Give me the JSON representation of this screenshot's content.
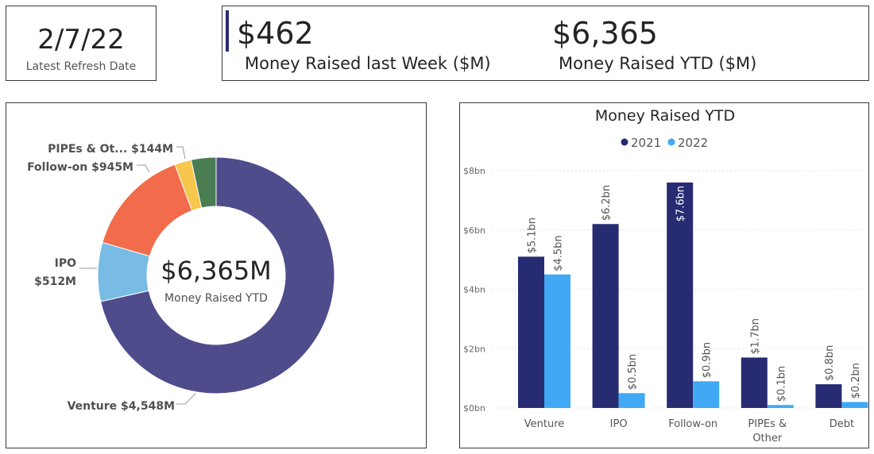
{
  "refresh": {
    "date": "2/7/22",
    "label": "Latest Refresh Date"
  },
  "kpis": {
    "week": {
      "value": "$462",
      "label": "Money Raised last Week ($M)"
    },
    "ytd": {
      "value": "$6,365",
      "label": "Money Raised YTD ($M)"
    }
  },
  "colors": {
    "venture": "#4f4c8c",
    "ipo": "#78bce6",
    "follow_on": "#f26b4a",
    "pipes": "#f7c64c",
    "debt": "#4b7d52",
    "series_2021": "#272b72",
    "series_2022": "#41a8f5",
    "accent": "#2a2d72"
  },
  "chart_data": [
    {
      "type": "pie",
      "variant": "donut",
      "center_value": "$6,365M",
      "center_label": "Money Raised YTD",
      "slices": [
        {
          "name": "Venture",
          "value": 4548,
          "label": "Venture $4,548M",
          "color_key": "venture"
        },
        {
          "name": "IPO",
          "value": 512,
          "label_line1": "IPO",
          "label_line2": "$512M",
          "color_key": "ipo"
        },
        {
          "name": "Follow-on",
          "value": 945,
          "label": "Follow-on $945M",
          "color_key": "follow_on"
        },
        {
          "name": "PIPEs & Other",
          "value": 144,
          "label": "PIPEs & Ot... $144M",
          "color_key": "pipes"
        },
        {
          "name": "Debt",
          "value": 216,
          "color_key": "debt"
        }
      ]
    },
    {
      "type": "bar",
      "title": "Money Raised YTD",
      "categories": [
        "Venture",
        "IPO",
        "Follow-on",
        "PIPEs & Other",
        "Debt"
      ],
      "category_lines": [
        [
          "Venture"
        ],
        [
          "IPO"
        ],
        [
          "Follow-on"
        ],
        [
          "PIPEs &",
          "Other"
        ],
        [
          "Debt"
        ]
      ],
      "series": [
        {
          "name": "2021",
          "values": [
            5.1,
            6.2,
            7.6,
            1.7,
            0.8
          ],
          "labels": [
            "$5.1bn",
            "$6.2bn",
            "$7.6bn",
            "$1.7bn",
            "$0.8bn"
          ],
          "color_key": "series_2021"
        },
        {
          "name": "2022",
          "values": [
            4.5,
            0.5,
            0.9,
            0.1,
            0.2
          ],
          "labels": [
            "$4.5bn",
            "$0.5bn",
            "$0.9bn",
            "$0.1bn",
            "$0.2bn"
          ],
          "color_key": "series_2022"
        }
      ],
      "ylim": [
        0,
        8
      ],
      "yticks": [
        0,
        2,
        4,
        6,
        8
      ],
      "ytick_labels": [
        "$0bn",
        "$2bn",
        "$4bn",
        "$6bn",
        "$8bn"
      ],
      "grid": true,
      "legend": "top-center"
    }
  ]
}
